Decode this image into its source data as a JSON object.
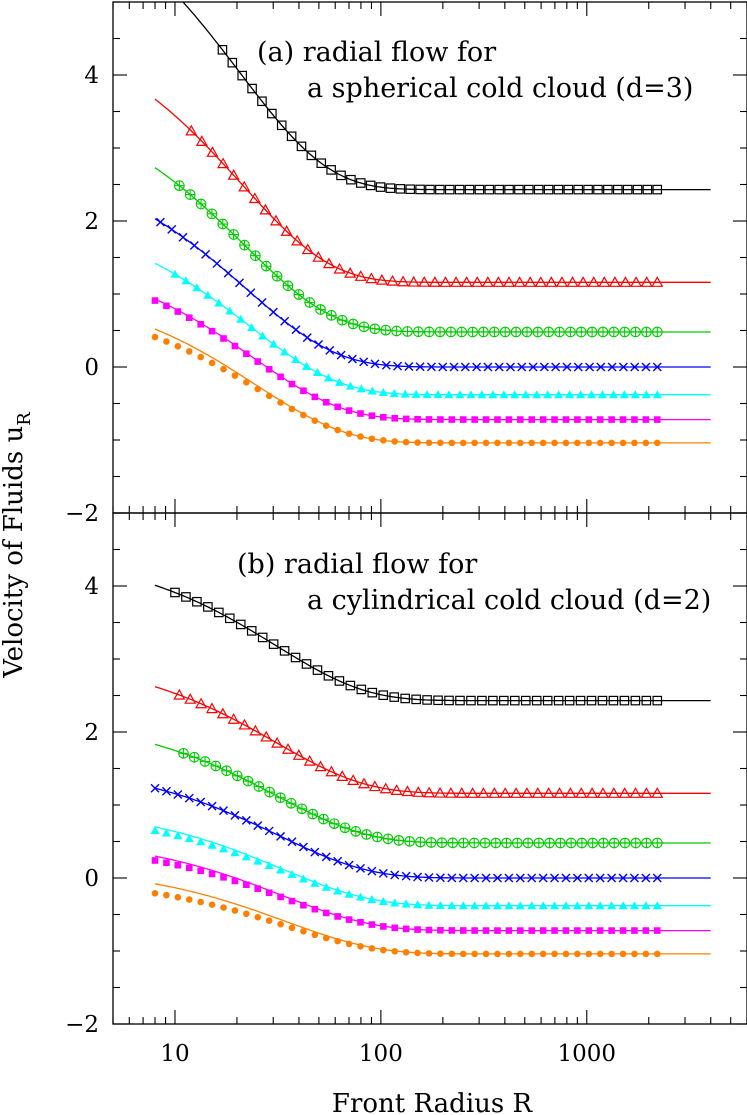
{
  "figure": {
    "xlabel": "Front Radius R",
    "ylabel": "Velocity of Fluids u",
    "ylabel_sub": "R",
    "xscale": "log",
    "xlim": [
      5,
      6000
    ],
    "ylim": [
      -2,
      5
    ],
    "xticks": [
      {
        "value": 10,
        "label": "10"
      },
      {
        "value": 100,
        "label": "100"
      },
      {
        "value": 1000,
        "label": "1000"
      }
    ],
    "yticks": [
      {
        "value": -2,
        "label": "−2"
      },
      {
        "value": 0,
        "label": "0"
      },
      {
        "value": 2,
        "label": "2"
      },
      {
        "value": 4,
        "label": "4"
      }
    ]
  },
  "chart_data": [
    {
      "type": "line",
      "panel": "a",
      "title_line1": "(a) radial flow for",
      "title_line2": "a spherical cold cloud (d=3)",
      "xscale": "log",
      "ylim": [
        -2,
        5
      ],
      "series": [
        {
          "color": "#000000",
          "marker": "open-square",
          "final": 2.43,
          "curve_amp": 2.69,
          "curve_decay": 20.6,
          "data_amp": 2.69,
          "data_decay": 20.6,
          "curve_start": 10,
          "data_start": 17,
          "data_end": 2200
        },
        {
          "color": "#ff0000",
          "marker": "open-triangle",
          "final": 1.16,
          "curve_amp": 2.51,
          "curve_decay": 21.0,
          "data_amp": 2.51,
          "data_decay": 21.0,
          "curve_start": 8,
          "data_start": 12,
          "data_end": 2200
        },
        {
          "color": "#00cc00",
          "marker": "open-circle-plus",
          "final": 0.48,
          "curve_amp": 2.25,
          "curve_decay": 21.6,
          "data_amp": 2.25,
          "data_decay": 21.6,
          "curve_start": 8,
          "data_start": 10.5,
          "data_end": 2200
        },
        {
          "color": "#0000ff",
          "marker": "cross",
          "final": 0.0,
          "curve_amp": 2.03,
          "curve_decay": 22.2,
          "data_amp": 2.03,
          "data_decay": 22.2,
          "curve_start": 8,
          "data_start": 8.5,
          "data_end": 2200
        },
        {
          "color": "#00ffff",
          "marker": "filled-triangle",
          "final": -0.38,
          "curve_amp": 1.8,
          "curve_decay": 23.2,
          "data_amp": 1.8,
          "data_decay": 23.2,
          "curve_start": 8,
          "data_start": 10,
          "data_end": 2200
        },
        {
          "color": "#ff00ff",
          "marker": "filled-square",
          "final": -0.72,
          "curve_amp": 1.65,
          "curve_decay": 24.0,
          "data_amp": 1.63,
          "data_decay": 24.0,
          "curve_start": 8,
          "data_start": 8,
          "data_end": 2200
        },
        {
          "color": "#ff8000",
          "marker": "filled-circle",
          "final": -1.04,
          "curve_amp": 1.56,
          "curve_decay": 24.8,
          "data_amp": 1.45,
          "data_decay": 25.5,
          "curve_start": 8,
          "data_start": 8,
          "data_end": 2200
        }
      ]
    },
    {
      "type": "line",
      "panel": "b",
      "title_line1": "(b) radial flow for",
      "title_line2": "a cylindrical cold cloud (d=2)",
      "xscale": "log",
      "ylim": [
        -2,
        5
      ],
      "series": [
        {
          "color": "#000000",
          "marker": "open-square",
          "final": 2.43,
          "curve_amp": 1.58,
          "curve_decay": 31.0,
          "data_amp": 1.58,
          "data_decay": 31.0,
          "curve_start": 8,
          "data_start": 10,
          "data_end": 2200
        },
        {
          "color": "#ff0000",
          "marker": "open-triangle",
          "final": 1.16,
          "curve_amp": 1.46,
          "curve_decay": 31.0,
          "data_amp": 1.46,
          "data_decay": 31.0,
          "curve_start": 8,
          "data_start": 10.5,
          "data_end": 2200
        },
        {
          "color": "#00cc00",
          "marker": "open-circle-plus",
          "final": 0.48,
          "curve_amp": 1.35,
          "curve_decay": 31.5,
          "data_amp": 1.35,
          "data_decay": 31.5,
          "curve_start": 8,
          "data_start": 11,
          "data_end": 2200
        },
        {
          "color": "#0000ff",
          "marker": "cross",
          "final": 0.0,
          "curve_amp": 1.23,
          "curve_decay": 32.0,
          "data_amp": 1.23,
          "data_decay": 32.0,
          "curve_start": 8,
          "data_start": 8,
          "data_end": 2200
        },
        {
          "color": "#00ffff",
          "marker": "filled-triangle",
          "final": -0.38,
          "curve_amp": 1.08,
          "curve_decay": 33.0,
          "data_amp": 1.03,
          "data_decay": 33.0,
          "curve_start": 8,
          "data_start": 8,
          "data_end": 2200
        },
        {
          "color": "#ff00ff",
          "marker": "filled-square",
          "final": -0.72,
          "curve_amp": 1.02,
          "curve_decay": 33.5,
          "data_amp": 0.96,
          "data_decay": 33.5,
          "curve_start": 8,
          "data_start": 8,
          "data_end": 2200
        },
        {
          "color": "#ff8000",
          "marker": "filled-circle",
          "final": -1.04,
          "curve_amp": 0.96,
          "curve_decay": 34.5,
          "data_amp": 0.83,
          "data_decay": 34.5,
          "curve_start": 8,
          "data_start": 8,
          "data_end": 2200
        }
      ]
    }
  ]
}
